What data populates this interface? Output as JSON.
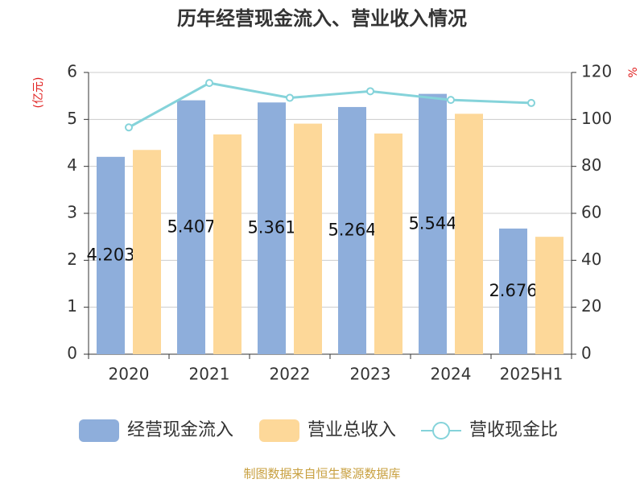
{
  "chart_data": {
    "type": "bar_line",
    "title": "历年经营现金流入、营业收入情况",
    "y_label": "(亿元)",
    "y2_label": "%",
    "source": "制图数据来自恒生聚源数据库",
    "categories": [
      "2020",
      "2021",
      "2022",
      "2023",
      "2024",
      "2025H1"
    ],
    "series": [
      {
        "name": "经营现金流入",
        "type": "bar",
        "color": "#8eaedb",
        "values": [
          4.203,
          5.407,
          5.361,
          5.264,
          5.544,
          2.676
        ],
        "data_labels": true
      },
      {
        "name": "营业总收入",
        "type": "bar",
        "color": "#fdd899",
        "values": [
          4.35,
          4.68,
          4.91,
          4.7,
          5.12,
          2.5
        ]
      },
      {
        "name": "营收现金比",
        "type": "line",
        "axis": "y2",
        "color": "#85d3da",
        "values": [
          96.6,
          115.5,
          109.2,
          112.0,
          108.3,
          107.0
        ]
      }
    ],
    "ylim": [
      0,
      6
    ],
    "yticks": [
      0,
      1,
      2,
      3,
      4,
      5,
      6
    ],
    "y2lim": [
      0,
      120
    ],
    "y2ticks": [
      0,
      20,
      40,
      60,
      80,
      100,
      120
    ],
    "grid": true,
    "legend": "bottom"
  }
}
